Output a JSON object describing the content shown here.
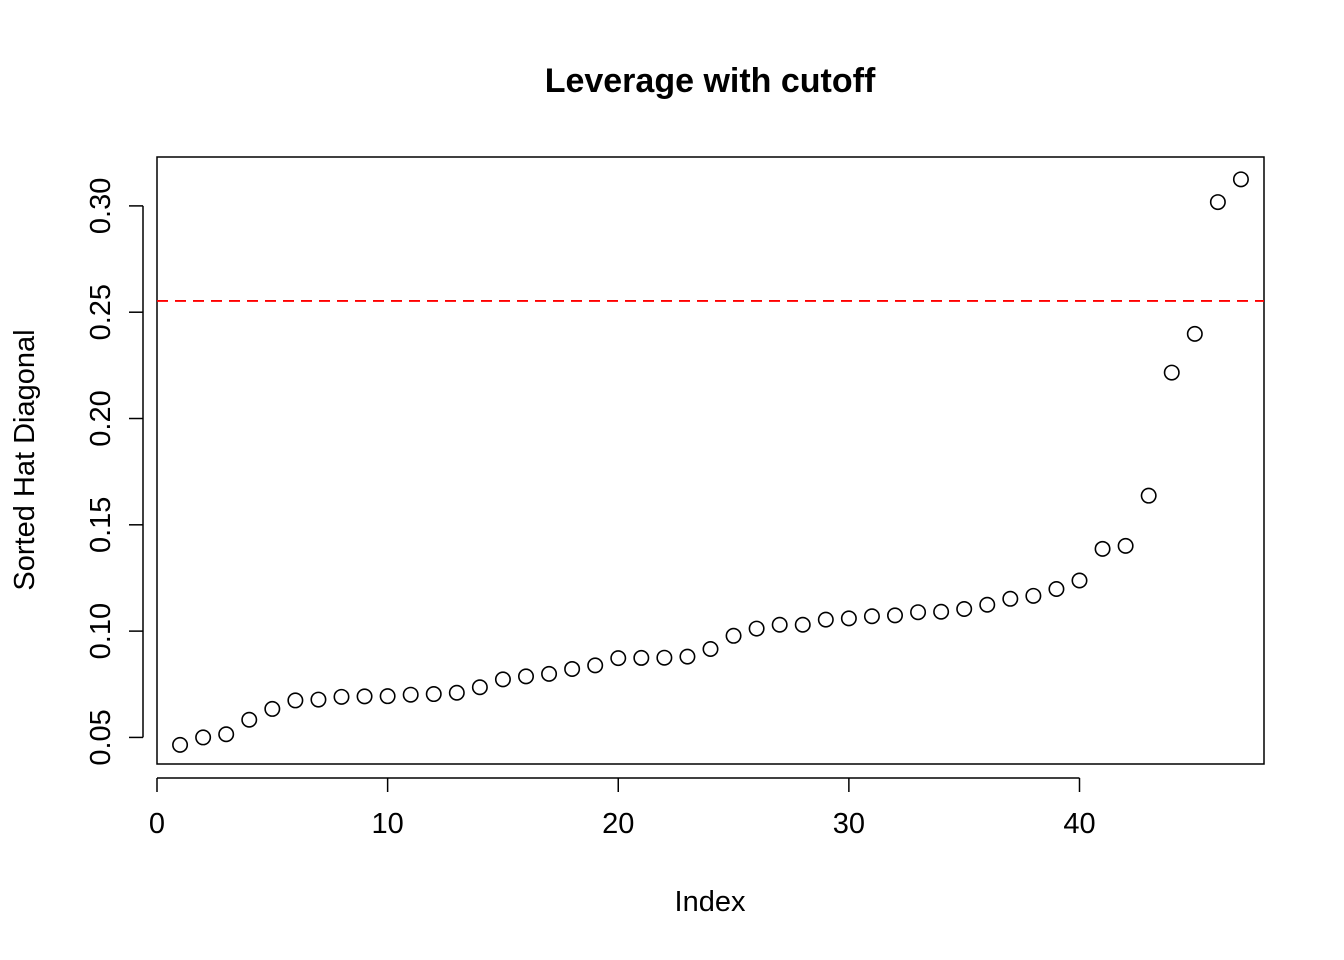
{
  "chart_data": {
    "type": "scatter",
    "title": "Leverage with cutoff",
    "xlabel": "Index",
    "ylabel": "Sorted Hat Diagonal",
    "xlim": [
      0,
      48
    ],
    "ylim": [
      0.0375,
      0.323
    ],
    "x_ticks": [
      0,
      10,
      20,
      30,
      40
    ],
    "x_tick_labels": [
      "0",
      "10",
      "20",
      "30",
      "40"
    ],
    "y_ticks": [
      0.05,
      0.1,
      0.15,
      0.2,
      0.25,
      0.3
    ],
    "y_tick_labels": [
      "0.05",
      "0.10",
      "0.15",
      "0.20",
      "0.25",
      "0.30"
    ],
    "grid": false,
    "legend": "none",
    "marker": "open-circle",
    "series": [
      {
        "x": [
          1,
          2,
          3,
          4,
          5,
          6,
          7,
          8,
          9,
          10,
          11,
          12,
          13,
          14,
          15,
          16,
          17,
          18,
          19,
          20,
          21,
          22,
          23,
          24,
          25,
          26,
          27,
          28,
          29,
          30,
          31,
          32,
          33,
          34,
          35,
          36,
          37,
          38,
          39,
          40,
          41,
          42,
          43,
          44,
          45,
          46,
          47
        ],
        "values": [
          0.0465,
          0.05,
          0.0515,
          0.0583,
          0.0634,
          0.0674,
          0.0678,
          0.0691,
          0.0693,
          0.0694,
          0.0701,
          0.0704,
          0.071,
          0.0736,
          0.0773,
          0.0787,
          0.0799,
          0.0822,
          0.0839,
          0.0873,
          0.0874,
          0.0875,
          0.088,
          0.0916,
          0.0978,
          0.1012,
          0.103,
          0.103,
          0.1054,
          0.106,
          0.107,
          0.1074,
          0.1089,
          0.1091,
          0.1104,
          0.1124,
          0.1152,
          0.1166,
          0.1198,
          0.1238,
          0.1387,
          0.1401,
          0.1637,
          0.2216,
          0.2398,
          0.3018,
          0.3125
        ]
      }
    ],
    "reference_lines": [
      {
        "orientation": "horizontal",
        "y": 0.2553,
        "color": "#ff0000",
        "style": "dashed"
      }
    ]
  }
}
